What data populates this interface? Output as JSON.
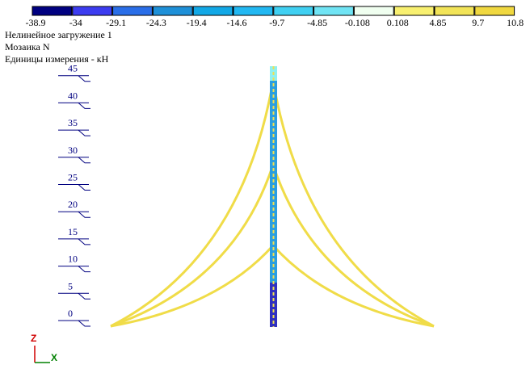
{
  "legend": {
    "colors": [
      "#000080",
      "#3c3cf0",
      "#2a6ee8",
      "#1e90d8",
      "#12a8e6",
      "#22b8f2",
      "#40d0f2",
      "#70e4f4",
      "#f0fff0",
      "#f8f070",
      "#f2e458",
      "#f0d840"
    ],
    "labels": [
      "-38.9",
      "-34",
      "-29.1",
      "-24.3",
      "-19.4",
      "-14.6",
      "-9.7",
      "-4.85",
      "-0.108",
      "0.108",
      "4.85",
      "9.7",
      "10.8"
    ]
  },
  "info": [
    "Нелинейное загружение 1",
    "Мозаика N",
    "Единицы измерения - кН"
  ],
  "levels": [
    "0",
    "5",
    "10",
    "15",
    "20",
    "25",
    "30",
    "35",
    "40",
    "45"
  ],
  "axes": {
    "z": "Z",
    "x": "X"
  }
}
